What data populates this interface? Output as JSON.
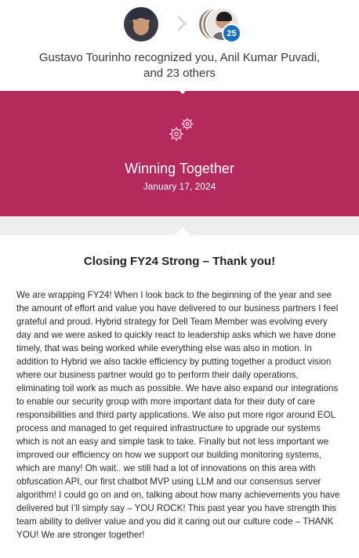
{
  "recognition": {
    "badge_count": "25",
    "sender": "Gustavo Tourinho",
    "verb": "recognized",
    "recipients": "you, Anil Kumar Puvadi,",
    "and_others": "and 23 others"
  },
  "award": {
    "title": "Winning Together",
    "date": "January 17, 2024",
    "icon": "gears-icon",
    "color": "#b52a5c"
  },
  "message": {
    "title": "Closing FY24 Strong – Thank you!",
    "body": "We are wrapping FY24! When I look back to the beginning of the year and see the amount of effort and value you have delivered to our business partners I feel grateful and proud. Hybrid strategy for Dell Team Member was evolving every day and we were asked to quickly react to leadership asks which we have done timely, that was being worked while everything else was also in motion. In addition to Hybrid we also tackle efficiency by putting together a product vision where our business partner would go to perform their daily operations, eliminating toil work as much as possible. We have also expand our integrations to enable our security group with more important data for their duty of care responsibilities and third party applications. We also put more rigor around EOL process and managed to get required infrastructure to upgrade our systems which is not an easy and simple task to take. Finally but not less important we improved our efficiency on how we support our building monitoring systems, which are many! Oh wait.. we still had a lot of innovations on this area with obfuscation API, our first chatbot MVP using LLM and our consensus server algorithm! I could go on and on, talking about how many achievements you have delivered but I’ll simply say – YOU ROCK! This past year you have strength this team ability to deliver value and you did it caring out our culture code – THANK YOU! We are stronger together!"
  }
}
